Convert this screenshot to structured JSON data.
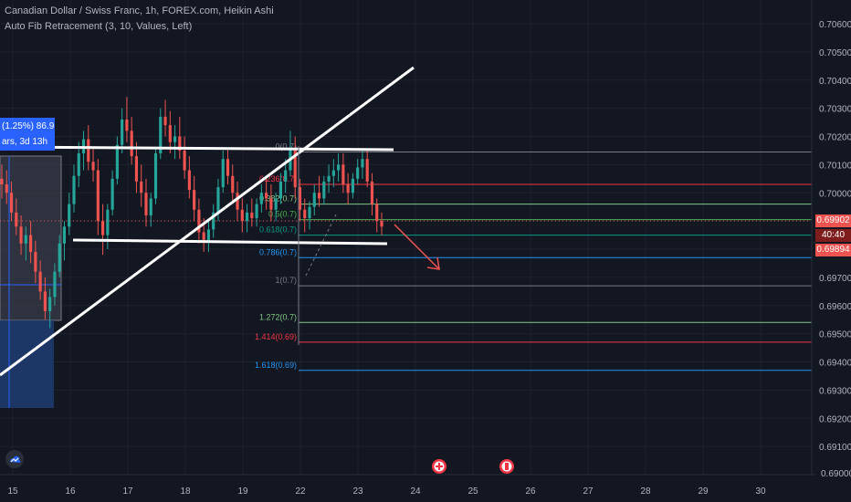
{
  "header": {
    "title": "Canadian Dollar / Swiss Franc, 1h, FOREX.com, Heikin Ashi",
    "indicator": "Auto Fib Retracement (3, 10, Values, Left)"
  },
  "position_tool": {
    "line1": "(1.25%) 86.9",
    "line2": "ars, 3d 13h"
  },
  "price_tags": {
    "current_price": "0.69902",
    "countdown": "40:40",
    "bid_price": "0.69894",
    "bottom_axis": "0.69000"
  },
  "colors": {
    "background": "#131722",
    "bull_candle": "#26a69a",
    "bear_candle": "#ef5350",
    "trendline": "#ffffff",
    "current_price_tag": "#ef5350",
    "countdown_tag": "#7f1d1d",
    "position_tool": "#2962ff"
  },
  "chart_data": {
    "type": "candlestick",
    "title": "Canadian Dollar / Swiss Franc, 1h, FOREX.com, Heikin Ashi",
    "x_ticks": [
      "15",
      "16",
      "17",
      "18",
      "19",
      "22",
      "23",
      "24",
      "25",
      "26",
      "27",
      "28",
      "29",
      "30"
    ],
    "y_ticks": [
      "0.70600",
      "0.70500",
      "0.70400",
      "0.70300",
      "0.70200",
      "0.70100",
      "0.70000",
      "0.69900",
      "0.69800",
      "0.69700",
      "0.69600",
      "0.69500",
      "0.69400",
      "0.69300",
      "0.69200",
      "0.69100",
      "0.69000"
    ],
    "ylim": [
      0.6899,
      0.7065
    ],
    "fib_levels": [
      {
        "label": "0(0.7)",
        "ratio": 0,
        "price": 0.70145,
        "color": "#787b86"
      },
      {
        "label": "0.236(0.7)",
        "ratio": 0.236,
        "price": 0.7003,
        "color": "#f23645"
      },
      {
        "label": "0.382(0.7)",
        "ratio": 0.382,
        "price": 0.6996,
        "color": "#81c784"
      },
      {
        "label": "0.5(0.7)",
        "ratio": 0.5,
        "price": 0.69905,
        "color": "#4caf50"
      },
      {
        "label": "0.618(0.7)",
        "ratio": 0.618,
        "price": 0.6985,
        "color": "#089981"
      },
      {
        "label": "0.786(0.7)",
        "ratio": 0.786,
        "price": 0.6977,
        "color": "#2196f3"
      },
      {
        "label": "1(0.7)",
        "ratio": 1,
        "price": 0.6967,
        "color": "#787b86"
      },
      {
        "label": "1.272(0.7)",
        "ratio": 1.272,
        "price": 0.6954,
        "color": "#81c784"
      },
      {
        "label": "1.414(0.69)",
        "ratio": 1.414,
        "price": 0.6947,
        "color": "#f23645"
      },
      {
        "label": "1.618(0.69)",
        "ratio": 1.618,
        "price": 0.6937,
        "color": "#2196f3"
      }
    ],
    "candles": [
      [
        0.7005,
        0.701,
        0.6998,
        0.7003
      ],
      [
        0.7003,
        0.7008,
        0.6996,
        0.7
      ],
      [
        0.7,
        0.7004,
        0.699,
        0.6993
      ],
      [
        0.6993,
        0.6998,
        0.6985,
        0.6988
      ],
      [
        0.6988,
        0.6992,
        0.6978,
        0.6982
      ],
      [
        0.6982,
        0.6988,
        0.6976,
        0.6985
      ],
      [
        0.6985,
        0.699,
        0.6975,
        0.6979
      ],
      [
        0.6979,
        0.6983,
        0.6968,
        0.6972
      ],
      [
        0.6972,
        0.6976,
        0.6962,
        0.6965
      ],
      [
        0.6965,
        0.697,
        0.6955,
        0.6958
      ],
      [
        0.6958,
        0.6966,
        0.6952,
        0.6963
      ],
      [
        0.6963,
        0.6975,
        0.696,
        0.6972
      ],
      [
        0.6972,
        0.6985,
        0.697,
        0.6982
      ],
      [
        0.6982,
        0.699,
        0.6976,
        0.6988
      ],
      [
        0.6988,
        0.7,
        0.6985,
        0.6996
      ],
      [
        0.6996,
        0.701,
        0.6993,
        0.7006
      ],
      [
        0.7006,
        0.7018,
        0.7002,
        0.7014
      ],
      [
        0.7014,
        0.7022,
        0.7008,
        0.7019
      ],
      [
        0.7019,
        0.7024,
        0.7008,
        0.7011
      ],
      [
        0.7011,
        0.7016,
        0.7004,
        0.7008
      ],
      [
        0.7008,
        0.7012,
        0.6985,
        0.699
      ],
      [
        0.699,
        0.6996,
        0.6978,
        0.6985
      ],
      [
        0.6985,
        0.6996,
        0.698,
        0.6994
      ],
      [
        0.6994,
        0.7008,
        0.6992,
        0.7005
      ],
      [
        0.7005,
        0.702,
        0.7003,
        0.7017
      ],
      [
        0.7017,
        0.703,
        0.7014,
        0.7026
      ],
      [
        0.7026,
        0.7034,
        0.7018,
        0.7022
      ],
      [
        0.7022,
        0.7027,
        0.701,
        0.7013
      ],
      [
        0.7013,
        0.7018,
        0.7,
        0.7004
      ],
      [
        0.7004,
        0.701,
        0.6995,
        0.7
      ],
      [
        0.7,
        0.7005,
        0.6988,
        0.6992
      ],
      [
        0.6992,
        0.7,
        0.6988,
        0.6998
      ],
      [
        0.6998,
        0.7016,
        0.6996,
        0.7014
      ],
      [
        0.7014,
        0.703,
        0.7012,
        0.7027
      ],
      [
        0.7027,
        0.7033,
        0.702,
        0.7024
      ],
      [
        0.7024,
        0.7029,
        0.7014,
        0.7018
      ],
      [
        0.7018,
        0.7024,
        0.7012,
        0.702
      ],
      [
        0.702,
        0.7027,
        0.7012,
        0.7015
      ],
      [
        0.7015,
        0.702,
        0.7005,
        0.7008
      ],
      [
        0.7008,
        0.7013,
        0.6998,
        0.7001
      ],
      [
        0.7001,
        0.7006,
        0.699,
        0.6994
      ],
      [
        0.6994,
        0.6998,
        0.6982,
        0.6986
      ],
      [
        0.6986,
        0.6991,
        0.6979,
        0.6983
      ],
      [
        0.6983,
        0.699,
        0.6979,
        0.6987
      ],
      [
        0.6987,
        0.6996,
        0.6984,
        0.6993
      ],
      [
        0.6993,
        0.7005,
        0.699,
        0.7002
      ],
      [
        0.7002,
        0.7015,
        0.7,
        0.7012
      ],
      [
        0.7012,
        0.7016,
        0.7003,
        0.7006
      ],
      [
        0.7006,
        0.701,
        0.6996,
        0.7
      ],
      [
        0.7,
        0.7004,
        0.699,
        0.6994
      ],
      [
        0.6994,
        0.6998,
        0.6986,
        0.699
      ],
      [
        0.699,
        0.6996,
        0.6986,
        0.6993
      ],
      [
        0.6993,
        0.6998,
        0.6988,
        0.6991
      ],
      [
        0.6991,
        0.6998,
        0.6988,
        0.6996
      ],
      [
        0.6996,
        0.7003,
        0.6993,
        0.7
      ],
      [
        0.7,
        0.7006,
        0.6994,
        0.6998
      ],
      [
        0.6998,
        0.7003,
        0.699,
        0.6994
      ],
      [
        0.6994,
        0.7,
        0.699,
        0.6998
      ],
      [
        0.6998,
        0.7007,
        0.6996,
        0.7004
      ],
      [
        0.7004,
        0.7012,
        0.7,
        0.7008
      ],
      [
        0.7008,
        0.7022,
        0.7006,
        0.7016
      ],
      [
        0.7016,
        0.702,
        0.6998,
        0.7002
      ],
      [
        0.7002,
        0.7005,
        0.699,
        0.6994
      ],
      [
        0.6994,
        0.6998,
        0.6986,
        0.6991
      ],
      [
        0.6991,
        0.6997,
        0.6987,
        0.6995
      ],
      [
        0.6995,
        0.7003,
        0.6992,
        0.7
      ],
      [
        0.7,
        0.7006,
        0.6995,
        0.6998
      ],
      [
        0.6998,
        0.7006,
        0.6996,
        0.7004
      ],
      [
        0.7004,
        0.701,
        0.7,
        0.7006
      ],
      [
        0.7006,
        0.7012,
        0.7002,
        0.7008
      ],
      [
        0.7008,
        0.7014,
        0.7004,
        0.701
      ],
      [
        0.701,
        0.7014,
        0.7,
        0.7003
      ],
      [
        0.7003,
        0.7007,
        0.6996,
        0.7
      ],
      [
        0.7,
        0.7007,
        0.6998,
        0.7005
      ],
      [
        0.7005,
        0.7012,
        0.7003,
        0.7009
      ],
      [
        0.7009,
        0.7015,
        0.7005,
        0.7012
      ],
      [
        0.7012,
        0.7015,
        0.7002,
        0.7004
      ],
      [
        0.7004,
        0.7007,
        0.6992,
        0.6996
      ],
      [
        0.6996,
        0.6998,
        0.6986,
        0.699
      ],
      [
        0.699,
        0.6993,
        0.6985,
        0.6988
      ]
    ]
  }
}
